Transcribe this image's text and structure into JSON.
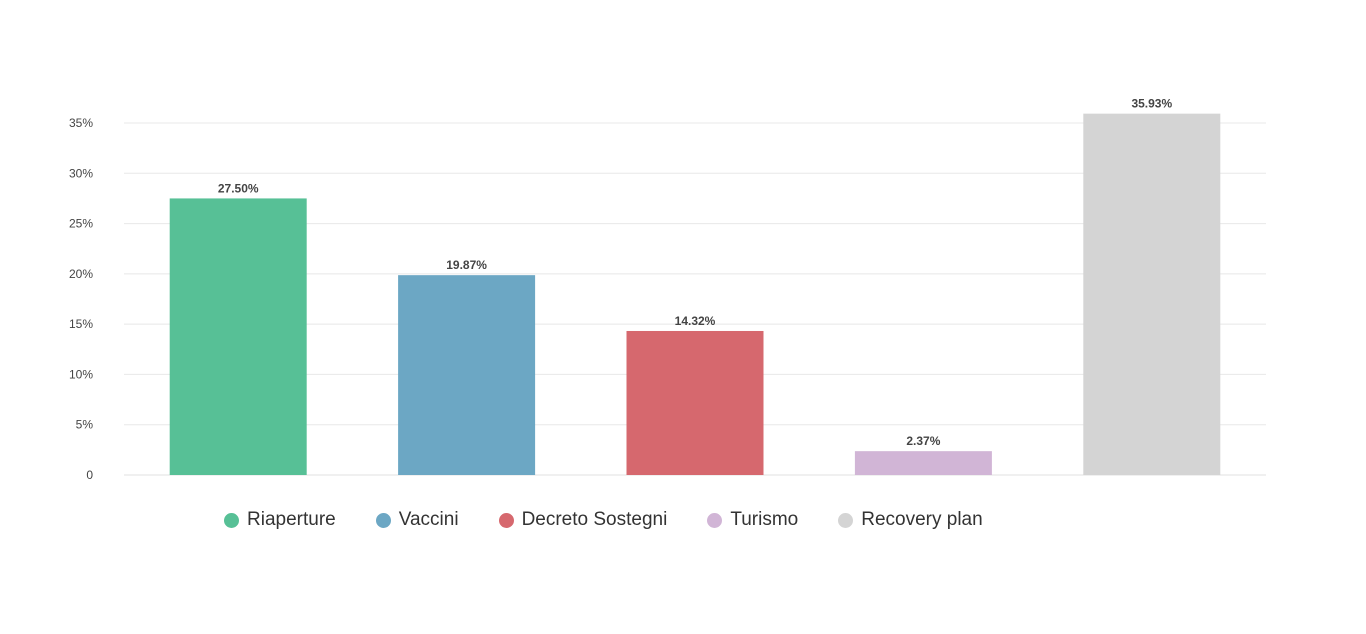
{
  "chart_data": {
    "type": "bar",
    "categories": [
      "Riaperture",
      "Vaccini",
      "Decreto Sostegni",
      "Turismo",
      "Recovery plan"
    ],
    "values": [
      27.5,
      19.87,
      14.32,
      2.37,
      35.93
    ],
    "value_labels": [
      "27.50%",
      "19.87%",
      "14.32%",
      "2.37%",
      "35.93%"
    ],
    "colors": [
      "#57c096",
      "#6ca7c4",
      "#d6686e",
      "#d1b5d6",
      "#d4d4d4"
    ],
    "ylim": [
      0,
      35
    ],
    "yticks": [
      0,
      5,
      10,
      15,
      20,
      25,
      30,
      35
    ],
    "ytick_labels": [
      "0",
      "5%",
      "10%",
      "15%",
      "20%",
      "25%",
      "30%",
      "35%"
    ],
    "grid": true,
    "legend_position": "bottom-left",
    "title": "",
    "xlabel": "",
    "ylabel": ""
  }
}
